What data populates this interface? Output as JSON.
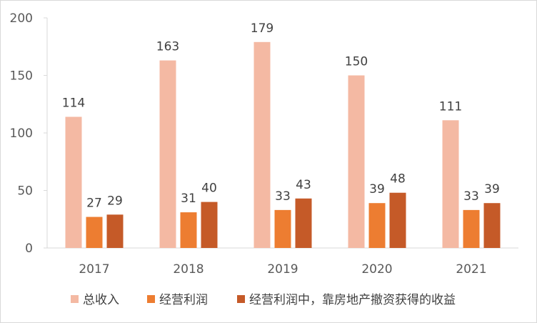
{
  "chart_data": {
    "type": "bar",
    "title": "",
    "xlabel": "",
    "ylabel": "",
    "categories": [
      "2017",
      "2018",
      "2019",
      "2020",
      "2021"
    ],
    "ylim": [
      0,
      200
    ],
    "yticks": [
      0,
      50,
      100,
      150,
      200
    ],
    "grid": false,
    "legend_position": "bottom",
    "series": [
      {
        "name": "总收入",
        "color": "#f4b9a3",
        "values": [
          114,
          163,
          179,
          150,
          111
        ]
      },
      {
        "name": "经营利润",
        "color": "#ed7d31",
        "values": [
          27,
          31,
          33,
          39,
          33
        ]
      },
      {
        "name": "经营利润中，靠房地产撤资获得的收益",
        "color": "#c55a28",
        "values": [
          29,
          40,
          43,
          48,
          39
        ]
      }
    ]
  }
}
